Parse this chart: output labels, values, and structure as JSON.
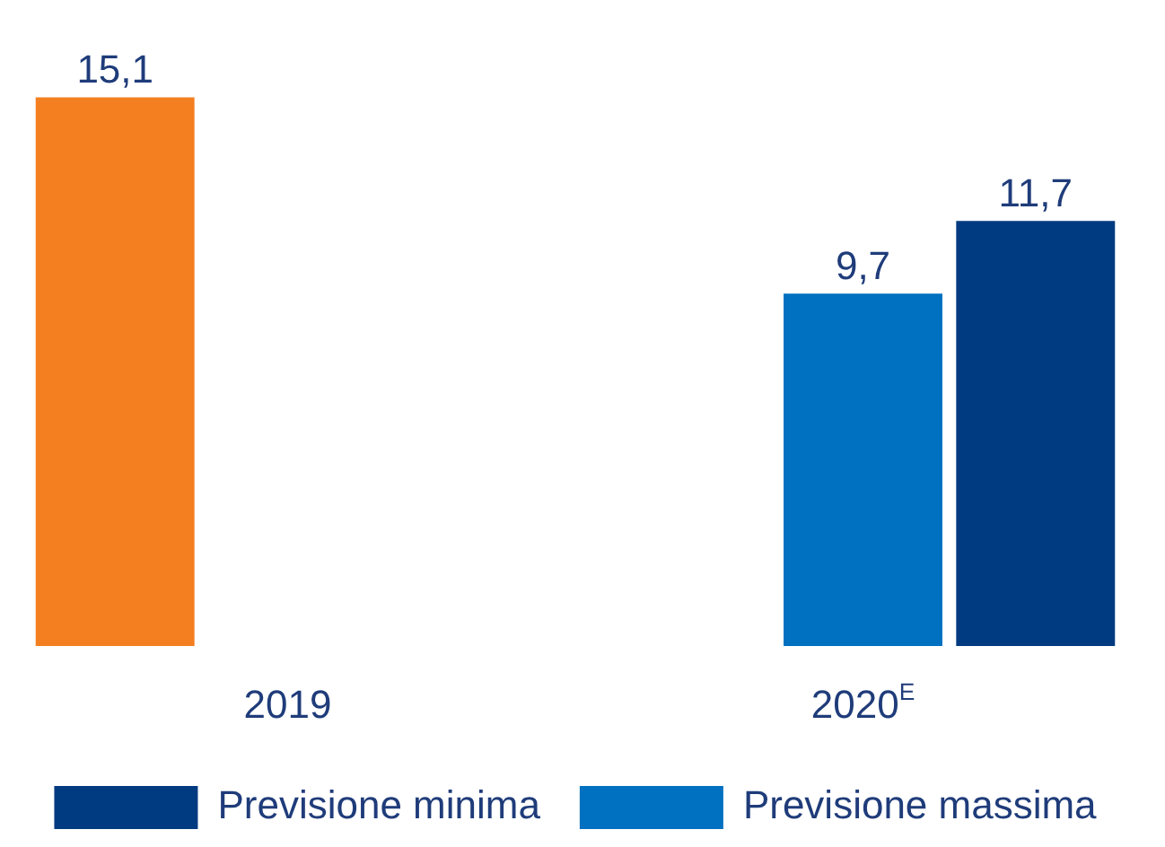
{
  "chart_data": {
    "type": "bar",
    "categories": [
      "2019",
      "2020$^{E}$"
    ],
    "series": [
      {
        "color": "#f47f20",
        "values": [
          15.1,
          null
        ],
        "value_labels": [
          "15,1",
          null
        ]
      },
      {
        "name": "Previsione massima",
        "color": "#0070c0",
        "values": [
          null,
          9.7
        ],
        "value_labels": [
          null,
          "9,7"
        ]
      },
      {
        "name": "Previsione minima",
        "color": "#003a80",
        "values": [
          null,
          11.7
        ],
        "value_labels": [
          null,
          "11,7"
        ]
      }
    ],
    "legend": "bottom",
    "tick_labels": "x"
  }
}
